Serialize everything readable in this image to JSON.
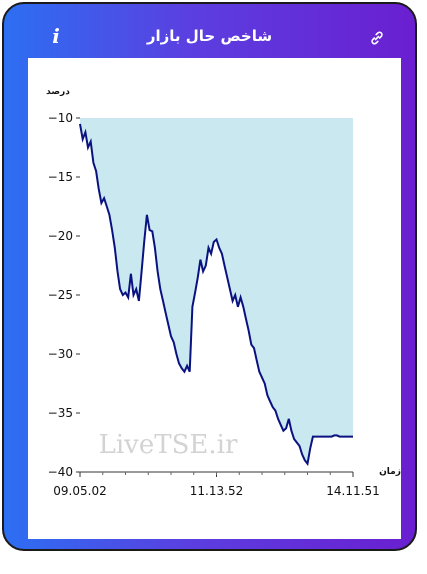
{
  "header": {
    "title": "شاخص حال بازار",
    "info_icon": "i",
    "link_icon": "link-icon"
  },
  "colors": {
    "gradient_start": "#2c6ff3",
    "gradient_end": "#6a1fd0",
    "area_fill": "#c9e8f0",
    "line": "#0a1280"
  },
  "watermark": "LiveTSE.ir",
  "chart_data": {
    "type": "line",
    "title": "",
    "ylabel": "درصد",
    "xlabel": "زمان",
    "ylim": [
      -40,
      -10
    ],
    "yticks": [
      -10,
      -15,
      -20,
      -25,
      -30,
      -35,
      -40
    ],
    "xticks": [
      "09.05.02",
      "11.13.52",
      "14.11.51"
    ],
    "series": [
      {
        "values": [
          -10.5,
          -11.8,
          -11.2,
          -12.5,
          -12.0,
          -13.8,
          -14.5,
          -16.0,
          -17.2,
          -16.8,
          -17.5,
          -18.2,
          -19.5,
          -21.0,
          -23.0,
          -24.5,
          -25.0,
          -24.8,
          -25.2,
          -23.2,
          -25.0,
          -24.5,
          -25.5,
          -23.0,
          -20.5,
          -18.2,
          -19.5,
          -19.6,
          -21.0,
          -23.0,
          -24.5,
          -25.5,
          -26.5,
          -27.5,
          -28.5,
          -29.0,
          -30.0,
          -30.8,
          -31.2,
          -31.5,
          -31.0,
          -31.5,
          -26.0,
          -24.8,
          -23.5,
          -22.0,
          -23.0,
          -22.5,
          -21.0,
          -21.5,
          -20.5,
          -20.3,
          -21.0,
          -21.5,
          -22.5,
          -23.5,
          -24.5,
          -25.5,
          -25.0,
          -26.0,
          -25.2,
          -26.0,
          -27.0,
          -28.0,
          -29.2,
          -29.5,
          -30.5,
          -31.5,
          -32.0,
          -32.5,
          -33.5,
          -34.0,
          -34.5,
          -34.8,
          -35.5,
          -36.0,
          -36.5,
          -36.3,
          -35.5,
          -36.5,
          -37.2,
          -37.5,
          -37.8,
          -38.5,
          -39.0,
          -39.3,
          -38.0,
          -37.0,
          -37.0,
          -37.0,
          -37.0,
          -37.0,
          -37.0,
          -37.0,
          -37.0,
          -36.9,
          -36.9,
          -37.0,
          -37.0,
          -37.0,
          -37.0,
          -37.0,
          -37.0
        ]
      }
    ]
  }
}
